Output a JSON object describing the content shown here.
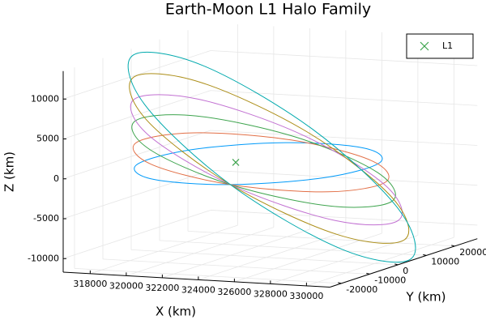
{
  "chart_data": {
    "type": "line3d",
    "title": "Earth-Moon L1 Halo Family",
    "xlabel": "X (km)",
    "ylabel": "Y (km)",
    "zlabel": "Z (km)",
    "xlim": [
      316500,
      331300
    ],
    "ylim": [
      -24000,
      28000
    ],
    "zlim": [
      -11700,
      13500
    ],
    "xticks": [
      318000,
      320000,
      322000,
      324000,
      326000,
      328000,
      330000
    ],
    "yticks": [
      -20000,
      -10000,
      0,
      10000,
      20000
    ],
    "zticks": [
      -10000,
      -5000,
      0,
      5000,
      10000
    ],
    "grid": true,
    "legend": "top-right",
    "series": [
      {
        "color": "#009af9",
        "x": [
          330300,
          328320,
          323550,
          318780,
          316800,
          318780,
          323550,
          328320
        ],
        "y": [
          0,
          6830,
          9660,
          6830,
          0,
          -6830,
          -9660,
          -6830
        ],
        "z": [
          1000,
          1770,
          1500,
          350,
          -1000,
          -1770,
          -1500,
          -350
        ]
      },
      {
        "color": "#e26f46",
        "x": [
          330640,
          328610,
          323700,
          318800,
          316760,
          318800,
          323700,
          328610
        ],
        "y": [
          0,
          7500,
          10610,
          7500,
          0,
          -7500,
          -10610,
          -7500
        ],
        "z": [
          -1380,
          180,
          1740,
          2380,
          1740,
          180,
          -1380,
          -2020
        ]
      },
      {
        "color": "#3ea44e",
        "x": [
          330980,
          328890,
          323850,
          318810,
          316720,
          318810,
          323850,
          328890
        ],
        "y": [
          0,
          8180,
          11570,
          8180,
          0,
          -8180,
          -11570,
          -8180
        ],
        "z": [
          -3760,
          -1410,
          1980,
          4420,
          4480,
          2130,
          -1260,
          -3700
        ]
      },
      {
        "color": "#c271d2",
        "x": [
          331320,
          329180,
          324000,
          318820,
          316680,
          318820,
          324000,
          329180
        ],
        "y": [
          0,
          8850,
          12520,
          8850,
          0,
          -8850,
          -12520,
          -8850
        ],
        "z": [
          -6140,
          -2990,
          2220,
          6450,
          7220,
          4070,
          -1140,
          -5370
        ]
      },
      {
        "color": "#ac8e18",
        "x": [
          331660,
          329460,
          324150,
          318840,
          316640,
          318840,
          324150,
          329460
        ],
        "y": [
          0,
          9530,
          13470,
          9530,
          0,
          -9530,
          -13470,
          -9530
        ],
        "z": [
          -8520,
          -4580,
          2460,
          8480,
          9960,
          6020,
          -1020,
          -7040
        ]
      },
      {
        "color": "#00a9ad",
        "x": [
          332000,
          329750,
          324300,
          318860,
          316600,
          318860,
          324300,
          329750
        ],
        "y": [
          0,
          10200,
          14430,
          10200,
          0,
          -10200,
          -14430,
          -10200
        ],
        "z": [
          -10900,
          -6170,
          2700,
          10520,
          12700,
          7970,
          -900,
          -8720
        ]
      }
    ],
    "scatter": {
      "name": "L1",
      "color": "#3ea44e",
      "x": [
        322300
      ],
      "y": [
        0
      ],
      "z": [
        0
      ]
    }
  }
}
